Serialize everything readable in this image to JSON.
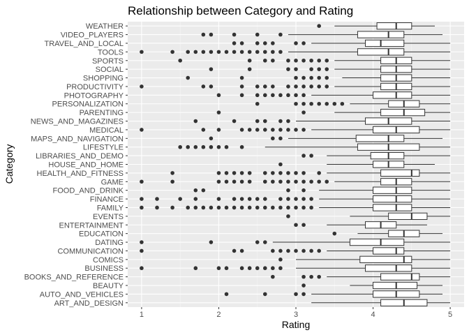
{
  "chart_data": {
    "type": "boxplot",
    "orientation": "horizontal",
    "title": "Relationship between Category and Rating",
    "xlabel": "Rating",
    "ylabel": "Category",
    "xlim": [
      0.82,
      5.18
    ],
    "x_ticks": [
      1,
      2,
      3,
      4,
      5
    ],
    "grid": true,
    "legend": "none",
    "colors": {
      "panel_bg": "#ebebeb",
      "grid_major": "#ffffff",
      "grid_minor": "#f5f5f5",
      "box_fill": "#ffffff",
      "stroke": "#333333",
      "outlier": "#333333"
    },
    "categories": [
      {
        "name": "ART_AND_DESIGN",
        "whisker_low": 3.2,
        "q1": 4.1,
        "median": 4.4,
        "q3": 4.7,
        "whisker_high": 5.0,
        "outliers": []
      },
      {
        "name": "AUTO_AND_VEHICLES",
        "whisker_low": 3.2,
        "q1": 4.0,
        "median": 4.3,
        "q3": 4.6,
        "whisker_high": 4.9,
        "outliers": [
          2.1,
          2.6,
          3.0,
          3.1
        ]
      },
      {
        "name": "BEAUTY",
        "whisker_low": 3.7,
        "q1": 4.0,
        "median": 4.3,
        "q3": 4.57,
        "whisker_high": 4.9,
        "outliers": [
          3.1
        ]
      },
      {
        "name": "BOOKS_AND_REFERENCE",
        "whisker_low": 3.4,
        "q1": 4.1,
        "median": 4.5,
        "q3": 4.6,
        "whisker_high": 5.0,
        "outliers": [
          2.7,
          3.1,
          3.2,
          3.3
        ]
      },
      {
        "name": "BUSINESS",
        "whisker_low": 3.0,
        "q1": 3.9,
        "median": 4.3,
        "q3": 4.5,
        "whisker_high": 5.0,
        "outliers": [
          1.0,
          1.7,
          2.0,
          2.1,
          2.3,
          2.4,
          2.5,
          2.6,
          2.7,
          2.8
        ]
      },
      {
        "name": "COMICS",
        "whisker_low": 3.0,
        "q1": 3.83,
        "median": 4.4,
        "q3": 4.5,
        "whisker_high": 5.0,
        "outliers": [
          2.8
        ]
      },
      {
        "name": "COMMUNICATION",
        "whisker_low": 3.4,
        "q1": 4.0,
        "median": 4.3,
        "q3": 4.4,
        "whisker_high": 5.0,
        "outliers": [
          1.0,
          2.2,
          2.3,
          2.7,
          2.8,
          2.9,
          3.0,
          3.1,
          3.2,
          3.3
        ]
      },
      {
        "name": "DATING",
        "whisker_low": 2.7,
        "q1": 3.7,
        "median": 4.1,
        "q3": 4.4,
        "whisker_high": 5.0,
        "outliers": [
          1.0,
          1.9,
          2.5,
          2.6
        ]
      },
      {
        "name": "EDUCATION",
        "whisker_low": 3.8,
        "q1": 4.2,
        "median": 4.4,
        "q3": 4.6,
        "whisker_high": 4.9,
        "outliers": [
          3.5
        ]
      },
      {
        "name": "ENTERTAINMENT",
        "whisker_low": 3.4,
        "q1": 3.9,
        "median": 4.1,
        "q3": 4.3,
        "whisker_high": 4.7,
        "outliers": [
          3.0,
          3.1
        ]
      },
      {
        "name": "EVENTS",
        "whisker_low": 3.7,
        "q1": 4.2,
        "median": 4.5,
        "q3": 4.7,
        "whisker_high": 5.0,
        "outliers": [
          2.9
        ]
      },
      {
        "name": "FAMILY",
        "whisker_low": 3.3,
        "q1": 4.0,
        "median": 4.3,
        "q3": 4.5,
        "whisker_high": 5.0,
        "outliers": [
          1.0,
          1.2,
          1.4,
          1.6,
          1.7,
          1.8,
          1.9,
          2.0,
          2.1,
          2.2,
          2.3,
          2.4,
          2.5,
          2.6,
          2.7,
          2.8,
          2.9,
          3.0,
          3.1,
          3.2
        ]
      },
      {
        "name": "FINANCE",
        "whisker_low": 3.3,
        "q1": 4.0,
        "median": 4.3,
        "q3": 4.5,
        "whisker_high": 5.0,
        "outliers": [
          1.0,
          1.2,
          1.5,
          1.7,
          2.0,
          2.2,
          2.3,
          2.4,
          2.5,
          2.6,
          2.8,
          2.9,
          3.0,
          3.1,
          3.2
        ]
      },
      {
        "name": "FOOD_AND_DRINK",
        "whisker_low": 3.3,
        "q1": 4.0,
        "median": 4.3,
        "q3": 4.5,
        "whisker_high": 5.0,
        "outliers": [
          1.7,
          1.8,
          2.9,
          3.1
        ]
      },
      {
        "name": "GAME",
        "whisker_low": 3.5,
        "q1": 4.1,
        "median": 4.3,
        "q3": 4.5,
        "whisker_high": 5.0,
        "outliers": [
          1.0,
          1.4,
          2.0,
          2.1,
          2.2,
          2.3,
          2.4,
          2.6,
          2.7,
          2.8,
          2.9,
          3.0,
          3.1,
          3.2,
          3.3,
          3.4
        ]
      },
      {
        "name": "HEALTH_AND_FITNESS",
        "whisker_low": 3.4,
        "q1": 4.1,
        "median": 4.5,
        "q3": 4.6,
        "whisker_high": 5.0,
        "outliers": [
          1.4,
          2.0,
          2.1,
          2.2,
          2.3,
          2.4,
          2.6,
          2.7,
          2.8,
          2.9,
          3.0,
          3.1,
          3.3
        ]
      },
      {
        "name": "HOUSE_AND_HOME",
        "whisker_low": 3.4,
        "q1": 4.0,
        "median": 4.2,
        "q3": 4.4,
        "whisker_high": 4.8,
        "outliers": [
          2.8
        ]
      },
      {
        "name": "LIBRARIES_AND_DEMO",
        "whisker_low": 3.4,
        "q1": 3.97,
        "median": 4.2,
        "q3": 4.4,
        "whisker_high": 5.0,
        "outliers": [
          3.1,
          3.2
        ]
      },
      {
        "name": "LIFESTYLE",
        "whisker_low": 2.6,
        "q1": 3.8,
        "median": 4.2,
        "q3": 4.6,
        "whisker_high": 5.0,
        "outliers": [
          1.5,
          1.6,
          1.7,
          1.8,
          1.9,
          2.0,
          2.1,
          2.3
        ]
      },
      {
        "name": "MAPS_AND_NAVIGATION",
        "whisker_low": 2.9,
        "q1": 3.78,
        "median": 4.2,
        "q3": 4.4,
        "whisker_high": 4.9,
        "outliers": [
          1.9,
          2.7,
          2.8
        ]
      },
      {
        "name": "MEDICAL",
        "whisker_low": 3.2,
        "q1": 4.0,
        "median": 4.3,
        "q3": 4.6,
        "whisker_high": 5.0,
        "outliers": [
          1.0,
          1.8,
          2.0,
          2.3,
          2.4,
          2.5,
          2.6,
          2.7,
          2.8,
          2.9,
          3.0,
          3.1
        ]
      },
      {
        "name": "NEWS_AND_MAGAZINES",
        "whisker_low": 3.0,
        "q1": 3.9,
        "median": 4.2,
        "q3": 4.5,
        "whisker_high": 5.0,
        "outliers": [
          1.7,
          2.2,
          2.5,
          2.6,
          2.8,
          2.9
        ]
      },
      {
        "name": "PARENTING",
        "whisker_low": 3.5,
        "q1": 4.1,
        "median": 4.4,
        "q3": 4.67,
        "whisker_high": 5.0,
        "outliers": [
          2.0,
          3.1
        ]
      },
      {
        "name": "PERSONALIZATION",
        "whisker_low": 3.7,
        "q1": 4.2,
        "median": 4.4,
        "q3": 4.6,
        "whisker_high": 5.0,
        "outliers": [
          2.5,
          3.0,
          3.1,
          3.2,
          3.3,
          3.4,
          3.5,
          3.6
        ]
      },
      {
        "name": "PHOTOGRAPHY",
        "whisker_low": 3.2,
        "q1": 4.0,
        "median": 4.3,
        "q3": 4.5,
        "whisker_high": 5.0,
        "outliers": [
          2.0,
          2.3,
          2.5,
          2.6,
          2.7,
          2.8,
          2.9,
          3.0,
          3.1
        ]
      },
      {
        "name": "PRODUCTIVITY",
        "whisker_low": 3.5,
        "q1": 4.1,
        "median": 4.3,
        "q3": 4.5,
        "whisker_high": 5.0,
        "outliers": [
          1.0,
          1.8,
          1.9,
          2.3,
          2.5,
          2.6,
          2.7,
          2.9,
          3.0,
          3.1,
          3.2,
          3.3,
          3.4
        ]
      },
      {
        "name": "SHOPPING",
        "whisker_low": 3.6,
        "q1": 4.1,
        "median": 4.3,
        "q3": 4.5,
        "whisker_high": 5.0,
        "outliers": [
          1.6,
          2.3,
          3.0,
          3.1,
          3.2,
          3.3,
          3.4
        ]
      },
      {
        "name": "SOCIAL",
        "whisker_low": 3.5,
        "q1": 4.1,
        "median": 4.3,
        "q3": 4.5,
        "whisker_high": 5.0,
        "outliers": [
          1.9,
          2.4,
          2.9,
          3.0,
          3.2,
          3.3,
          3.4
        ]
      },
      {
        "name": "SPORTS",
        "whisker_low": 3.5,
        "q1": 4.1,
        "median": 4.3,
        "q3": 4.5,
        "whisker_high": 5.0,
        "outliers": [
          1.5,
          2.4,
          2.6,
          2.7,
          2.9,
          3.0,
          3.1,
          3.2,
          3.3,
          3.4
        ]
      },
      {
        "name": "TOOLS",
        "whisker_low": 2.9,
        "q1": 3.8,
        "median": 4.2,
        "q3": 4.4,
        "whisker_high": 5.0,
        "outliers": [
          1.0,
          1.4,
          1.6,
          1.7,
          1.8,
          1.9,
          2.0,
          2.1,
          2.2,
          2.3,
          2.4,
          2.5,
          2.6,
          2.7,
          2.8
        ]
      },
      {
        "name": "TRAVEL_AND_LOCAL",
        "whisker_low": 3.2,
        "q1": 3.9,
        "median": 4.1,
        "q3": 4.4,
        "whisker_high": 5.0,
        "outliers": [
          2.2,
          2.3,
          2.5,
          2.6,
          2.7,
          3.0,
          3.1
        ]
      },
      {
        "name": "VIDEO_PLAYERS",
        "whisker_low": 2.9,
        "q1": 3.8,
        "median": 4.2,
        "q3": 4.4,
        "whisker_high": 4.9,
        "outliers": [
          1.8,
          1.9,
          2.2,
          2.5,
          2.8
        ]
      },
      {
        "name": "WEATHER",
        "whisker_low": 3.5,
        "q1": 4.05,
        "median": 4.3,
        "q3": 4.5,
        "whisker_high": 4.8,
        "outliers": [
          3.3
        ]
      }
    ]
  }
}
